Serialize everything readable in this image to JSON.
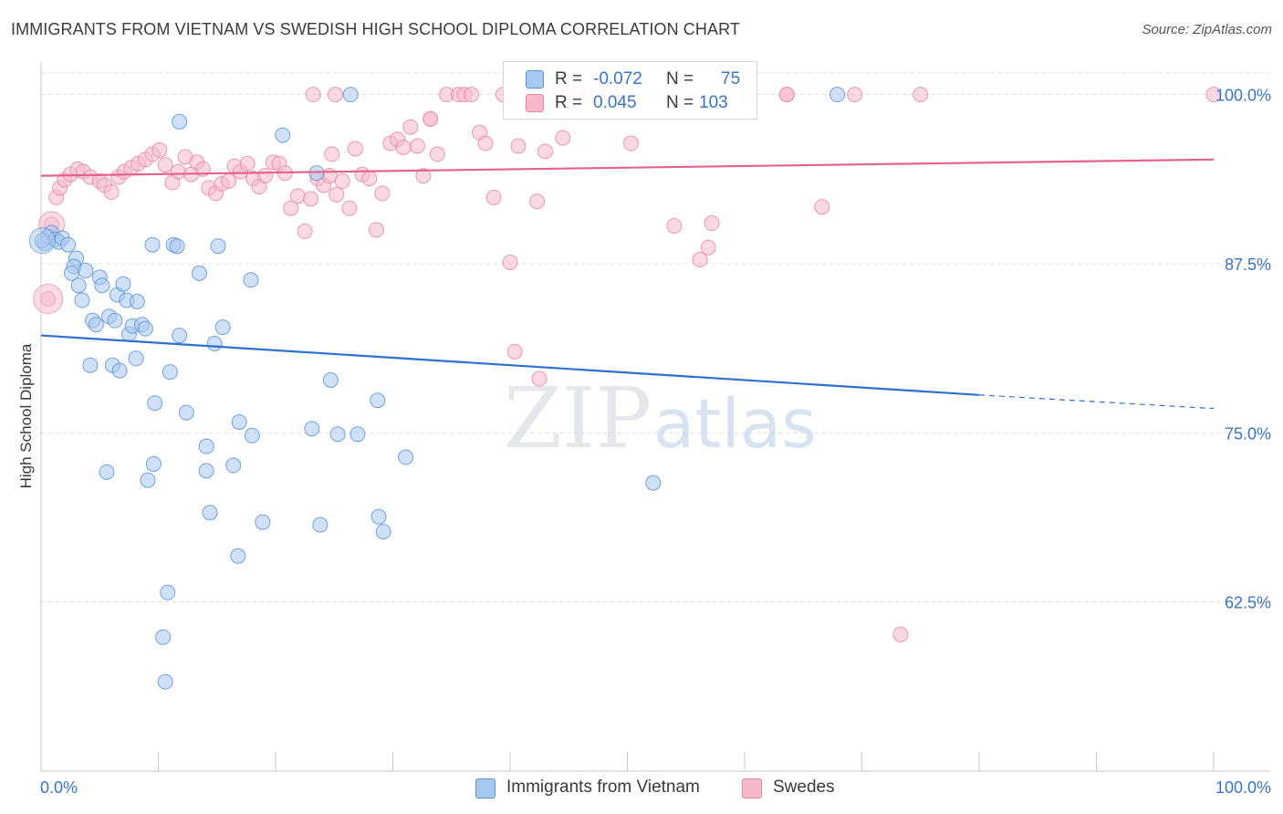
{
  "title": "IMMIGRANTS FROM VIETNAM VS SWEDISH HIGH SCHOOL DIPLOMA CORRELATION CHART",
  "source": "Source: ZipAtlas.com",
  "watermark": {
    "zip": "ZIP",
    "atlas": "atlas"
  },
  "stats": {
    "blue": {
      "r_label": "R =",
      "r_value": "-0.072",
      "n_label": "N =",
      "n_value": "75"
    },
    "pink": {
      "r_label": "R =",
      "r_value": "0.045",
      "n_label": "N =",
      "n_value": "103"
    }
  },
  "legend": {
    "blue": "Immigrants from Vietnam",
    "pink": "Swedes"
  },
  "colors": {
    "blue_fill": "#a9c8f0",
    "blue_stroke": "#5b93da",
    "blue_line": "#2f6fcf",
    "pink_fill": "#f6b9cc",
    "pink_stroke": "#e887a5",
    "pink_line": "#e4638d",
    "grid": "#dcdcdc",
    "axis_label": "#3a74c8"
  },
  "chart_data": {
    "type": "scatter",
    "title": "IMMIGRANTS FROM VIETNAM VS SWEDISH HIGH SCHOOL DIPLOMA CORRELATION CHART",
    "xlabel": "",
    "ylabel": "High School Diploma",
    "xlim": [
      0,
      100
    ],
    "ylim": [
      50,
      102
    ],
    "x_tick_labels": [
      "0.0%",
      "100.0%"
    ],
    "y_ticks": [
      62.5,
      75.0,
      87.5,
      100.0
    ],
    "y_tick_labels": [
      "62.5%",
      "75.0%",
      "87.5%",
      "100.0%"
    ],
    "grid": true,
    "legend_position": "bottom-center",
    "series": [
      {
        "name": "Immigrants from Vietnam",
        "color": "blue",
        "trend": {
          "x": [
            0,
            80,
            100
          ],
          "y": [
            82.2,
            77.8,
            76.8
          ],
          "solid_until": 80
        },
        "points": [
          [
            0.3,
            89.0
          ],
          [
            0.6,
            89.5
          ],
          [
            0.9,
            89.8
          ],
          [
            1.2,
            89.3
          ],
          [
            1.5,
            89.1
          ],
          [
            1.8,
            89.4
          ],
          [
            2.3,
            88.9
          ],
          [
            3.0,
            87.9
          ],
          [
            2.8,
            87.3
          ],
          [
            2.6,
            86.8
          ],
          [
            3.8,
            87.0
          ],
          [
            3.2,
            85.9
          ],
          [
            3.5,
            84.8
          ],
          [
            5.0,
            86.5
          ],
          [
            5.2,
            85.9
          ],
          [
            6.5,
            85.2
          ],
          [
            7.0,
            86.0
          ],
          [
            7.3,
            84.8
          ],
          [
            8.2,
            84.7
          ],
          [
            4.4,
            83.3
          ],
          [
            4.7,
            83.0
          ],
          [
            5.8,
            83.6
          ],
          [
            6.3,
            83.3
          ],
          [
            7.5,
            82.3
          ],
          [
            7.8,
            82.9
          ],
          [
            8.6,
            83.0
          ],
          [
            8.9,
            82.7
          ],
          [
            4.2,
            80.0
          ],
          [
            6.1,
            80.0
          ],
          [
            6.7,
            79.6
          ],
          [
            8.1,
            80.5
          ],
          [
            11.8,
            82.2
          ],
          [
            14.8,
            81.6
          ],
          [
            15.5,
            82.8
          ],
          [
            11.0,
            79.5
          ],
          [
            9.5,
            88.9
          ],
          [
            11.3,
            88.9
          ],
          [
            11.6,
            88.8
          ],
          [
            15.1,
            88.8
          ],
          [
            13.5,
            86.8
          ],
          [
            17.9,
            86.3
          ],
          [
            11.8,
            98.0
          ],
          [
            20.6,
            97.0
          ],
          [
            26.4,
            100.0
          ],
          [
            67.9,
            100.0
          ],
          [
            23.5,
            94.2
          ],
          [
            12.4,
            76.5
          ],
          [
            9.7,
            77.2
          ],
          [
            16.9,
            75.8
          ],
          [
            18.0,
            74.8
          ],
          [
            23.1,
            75.3
          ],
          [
            25.3,
            74.9
          ],
          [
            27.0,
            74.9
          ],
          [
            28.7,
            77.4
          ],
          [
            24.7,
            78.9
          ],
          [
            14.1,
            74.0
          ],
          [
            5.6,
            72.1
          ],
          [
            9.6,
            72.7
          ],
          [
            9.1,
            71.5
          ],
          [
            14.1,
            72.2
          ],
          [
            16.4,
            72.6
          ],
          [
            31.1,
            73.2
          ],
          [
            52.2,
            71.3
          ],
          [
            14.4,
            69.1
          ],
          [
            18.9,
            68.4
          ],
          [
            23.8,
            68.2
          ],
          [
            28.8,
            68.8
          ],
          [
            29.2,
            67.7
          ],
          [
            16.8,
            65.9
          ],
          [
            10.8,
            63.2
          ],
          [
            10.4,
            59.9
          ],
          [
            10.6,
            56.6
          ],
          [
            0.1,
            89.2
          ]
        ]
      },
      {
        "name": "Swedes",
        "color": "pink",
        "trend": {
          "x": [
            0,
            100
          ],
          "y": [
            94.0,
            95.2
          ]
        },
        "points": [
          [
            0.6,
            84.9
          ],
          [
            0.9,
            90.4
          ],
          [
            1.3,
            92.4
          ],
          [
            1.6,
            93.1
          ],
          [
            2.0,
            93.7
          ],
          [
            2.5,
            94.1
          ],
          [
            3.1,
            94.5
          ],
          [
            3.6,
            94.3
          ],
          [
            4.2,
            93.9
          ],
          [
            5.0,
            93.6
          ],
          [
            5.4,
            93.3
          ],
          [
            6.0,
            92.8
          ],
          [
            6.6,
            93.9
          ],
          [
            7.1,
            94.3
          ],
          [
            7.7,
            94.6
          ],
          [
            8.3,
            94.9
          ],
          [
            8.9,
            95.2
          ],
          [
            9.5,
            95.6
          ],
          [
            10.1,
            95.9
          ],
          [
            10.6,
            94.8
          ],
          [
            11.2,
            93.5
          ],
          [
            11.7,
            94.3
          ],
          [
            12.3,
            95.4
          ],
          [
            12.8,
            94.1
          ],
          [
            13.3,
            95.0
          ],
          [
            13.8,
            94.5
          ],
          [
            14.3,
            93.1
          ],
          [
            14.9,
            92.7
          ],
          [
            15.4,
            93.4
          ],
          [
            16.0,
            93.6
          ],
          [
            16.5,
            94.7
          ],
          [
            17.0,
            94.3
          ],
          [
            17.6,
            94.9
          ],
          [
            18.1,
            93.8
          ],
          [
            18.6,
            93.2
          ],
          [
            19.1,
            94.0
          ],
          [
            19.8,
            95.0
          ],
          [
            20.3,
            94.9
          ],
          [
            20.8,
            94.2
          ],
          [
            21.3,
            91.6
          ],
          [
            21.9,
            92.5
          ],
          [
            22.5,
            89.9
          ],
          [
            23.0,
            92.3
          ],
          [
            23.6,
            93.8
          ],
          [
            24.1,
            93.3
          ],
          [
            24.6,
            94.0
          ],
          [
            25.2,
            92.6
          ],
          [
            25.7,
            93.6
          ],
          [
            26.3,
            91.6
          ],
          [
            26.8,
            96.0
          ],
          [
            27.4,
            94.1
          ],
          [
            28.0,
            93.8
          ],
          [
            28.6,
            90.0
          ],
          [
            29.1,
            92.7
          ],
          [
            29.8,
            96.4
          ],
          [
            30.4,
            96.7
          ],
          [
            30.9,
            96.1
          ],
          [
            31.5,
            97.6
          ],
          [
            32.1,
            96.2
          ],
          [
            32.6,
            94.0
          ],
          [
            33.2,
            98.2
          ],
          [
            33.8,
            95.6
          ],
          [
            34.6,
            100.0
          ],
          [
            35.6,
            100.0
          ],
          [
            36.1,
            100.0
          ],
          [
            36.7,
            100.0
          ],
          [
            37.4,
            97.2
          ],
          [
            37.9,
            96.4
          ],
          [
            38.6,
            92.4
          ],
          [
            39.4,
            100.0
          ],
          [
            40.0,
            87.6
          ],
          [
            40.7,
            96.2
          ],
          [
            41.6,
            100.0
          ],
          [
            42.3,
            92.1
          ],
          [
            43.0,
            95.8
          ],
          [
            44.1,
            100.0
          ],
          [
            44.7,
            100.0
          ],
          [
            45.5,
            100.0
          ],
          [
            45.9,
            100.0
          ],
          [
            46.8,
            100.0
          ],
          [
            47.5,
            100.0
          ],
          [
            48.5,
            100.0
          ],
          [
            49.6,
            100.0
          ],
          [
            50.3,
            96.4
          ],
          [
            51.9,
            100.0
          ],
          [
            54.0,
            90.3
          ],
          [
            54.6,
            100.0
          ],
          [
            56.2,
            87.8
          ],
          [
            56.9,
            88.7
          ],
          [
            57.2,
            90.5
          ],
          [
            58.7,
            100.0
          ],
          [
            60.3,
            100.0
          ],
          [
            63.6,
            100.0
          ],
          [
            66.6,
            91.7
          ],
          [
            69.4,
            100.0
          ],
          [
            75.0,
            100.0
          ],
          [
            25.1,
            100.0
          ],
          [
            24.8,
            95.6
          ],
          [
            63.6,
            100.0
          ],
          [
            33.2,
            98.2
          ],
          [
            44.5,
            96.8
          ],
          [
            40.4,
            81.0
          ],
          [
            42.5,
            79.0
          ],
          [
            73.3,
            60.1
          ],
          [
            100.0,
            100.0
          ],
          [
            23.2,
            100.0
          ]
        ]
      }
    ]
  }
}
